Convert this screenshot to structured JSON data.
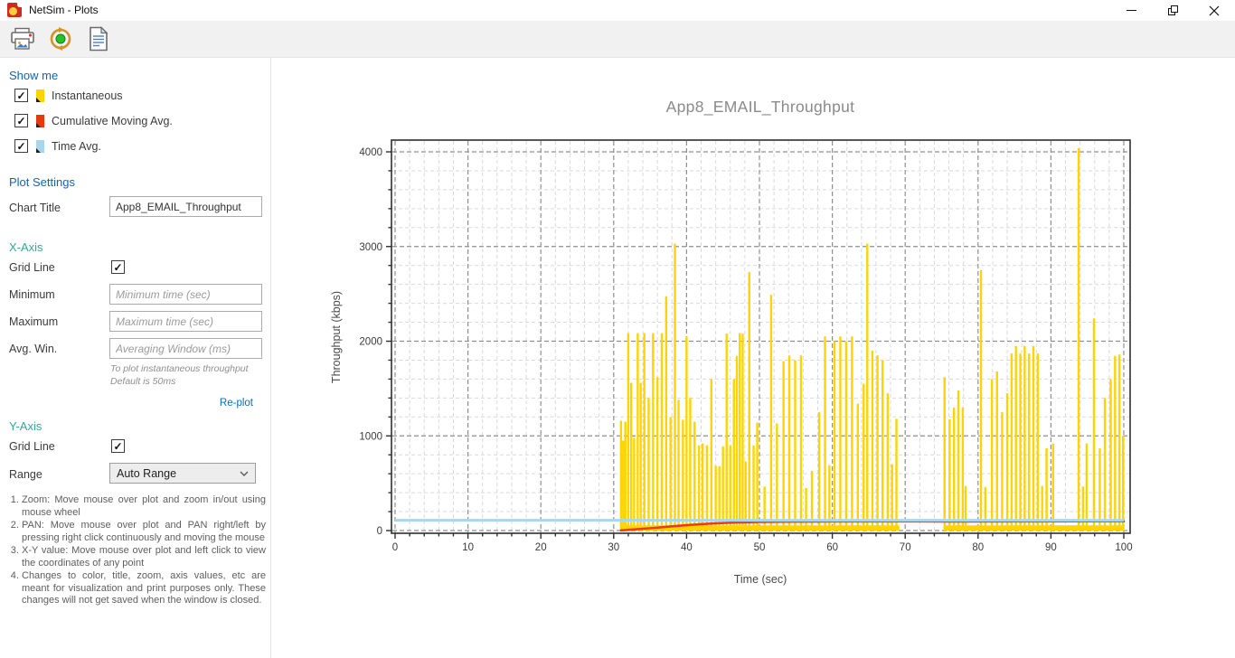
{
  "window": {
    "title": "NetSim - Plots"
  },
  "toolbar": {
    "buttons": [
      {
        "name": "print"
      },
      {
        "name": "capture-animation"
      },
      {
        "name": "report"
      }
    ]
  },
  "sidebar": {
    "show_me": {
      "heading": "Show me",
      "items": [
        {
          "label": "Instantaneous",
          "color": "#FFD400",
          "checked": true
        },
        {
          "label": "Cumulative Moving Avg.",
          "color": "#E8380D",
          "checked": true
        },
        {
          "label": "Time Avg.",
          "color": "#A9D6EF",
          "checked": true
        }
      ]
    },
    "plot_settings": {
      "heading": "Plot Settings",
      "chart_title_label": "Chart Title",
      "chart_title_value": "App8_EMAIL_Throughput"
    },
    "x_axis": {
      "heading": "X-Axis",
      "grid_line_label": "Grid Line",
      "grid_line_checked": true,
      "minimum_label": "Minimum",
      "minimum_placeholder": "Minimum time (sec)",
      "maximum_label": "Maximum",
      "maximum_placeholder": "Maximum time (sec)",
      "avg_win_label": "Avg. Win.",
      "avg_win_placeholder": "Averaging Window (ms)",
      "helper_line1": "To plot instantaneous throughput",
      "helper_line2": "Default is 50ms",
      "replot_label": "Re-plot"
    },
    "y_axis": {
      "heading": "Y-Axis",
      "grid_line_label": "Grid Line",
      "grid_line_checked": true,
      "range_label": "Range",
      "range_value": "Auto Range"
    },
    "instructions": [
      "Zoom: Move mouse over plot and zoom in/out using mouse wheel",
      "PAN: Move mouse over plot and PAN right/left by pressing right click continuously and moving the mouse",
      "X-Y value: Move mouse over plot and left click to view the coordinates of any point",
      "Changes to color, title, zoom, axis values, etc are meant for visualization and print purposes only. These changes will not get saved when the window is closed."
    ]
  },
  "chart_data": {
    "type": "bar",
    "title": "App8_EMAIL_Throughput",
    "xlabel": "Time (sec)",
    "ylabel": "Throughput (kbps)",
    "xlim": [
      0,
      100
    ],
    "ylim": [
      0,
      4000
    ],
    "x_ticks": [
      0,
      10,
      20,
      30,
      40,
      50,
      60,
      70,
      80,
      90,
      100
    ],
    "y_ticks": [
      0,
      1000,
      2000,
      3000,
      4000
    ],
    "x_minor_step": 2,
    "y_minor_step": 200,
    "grid": true,
    "colors": {
      "grid_major": "#8f8f8f",
      "grid_minor": "#dadada",
      "border": "#2e2e2e",
      "tick_text": "#3a3a3a"
    },
    "series": [
      {
        "name": "Instantaneous",
        "type": "bar",
        "color": "#FFD400",
        "baseline_value": 55,
        "baseline_segments": [
          [
            31.0,
            69.2
          ],
          [
            75.3,
            100.0
          ]
        ],
        "points": [
          [
            31.0,
            1160
          ],
          [
            31.3,
            950
          ],
          [
            31.6,
            1150
          ],
          [
            32.0,
            2085
          ],
          [
            32.4,
            1560
          ],
          [
            32.8,
            980
          ],
          [
            33.3,
            2085
          ],
          [
            33.7,
            1560
          ],
          [
            34.2,
            2085
          ],
          [
            34.8,
            1400
          ],
          [
            35.4,
            2085
          ],
          [
            36.0,
            1620
          ],
          [
            36.6,
            2085
          ],
          [
            37.2,
            2475
          ],
          [
            37.8,
            1200
          ],
          [
            38.4,
            3030
          ],
          [
            38.9,
            1380
          ],
          [
            39.5,
            1170
          ],
          [
            40.0,
            2050
          ],
          [
            40.5,
            1400
          ],
          [
            41.1,
            1150
          ],
          [
            41.7,
            900
          ],
          [
            42.2,
            920
          ],
          [
            42.8,
            900
          ],
          [
            43.4,
            1600
          ],
          [
            44.0,
            685
          ],
          [
            44.5,
            680
          ],
          [
            45.0,
            890
          ],
          [
            45.5,
            2080
          ],
          [
            46.0,
            900
          ],
          [
            46.5,
            1600
          ],
          [
            46.9,
            1845
          ],
          [
            47.3,
            2085
          ],
          [
            47.7,
            2080
          ],
          [
            48.1,
            730
          ],
          [
            48.6,
            2730
          ],
          [
            49.2,
            900
          ],
          [
            49.7,
            1140
          ],
          [
            50.7,
            465
          ],
          [
            51.6,
            2490
          ],
          [
            52.4,
            1130
          ],
          [
            53.3,
            1790
          ],
          [
            54.1,
            1850
          ],
          [
            54.9,
            1800
          ],
          [
            55.7,
            1850
          ],
          [
            56.4,
            450
          ],
          [
            57.2,
            630
          ],
          [
            58.2,
            1250
          ],
          [
            59.0,
            2050
          ],
          [
            59.6,
            690
          ],
          [
            60.3,
            2000
          ],
          [
            61.1,
            2050
          ],
          [
            61.9,
            2000
          ],
          [
            62.7,
            2050
          ],
          [
            63.5,
            1340
          ],
          [
            64.3,
            1550
          ],
          [
            64.8,
            3030
          ],
          [
            65.5,
            1900
          ],
          [
            66.2,
            1850
          ],
          [
            66.9,
            1800
          ],
          [
            67.6,
            1450
          ],
          [
            68.2,
            700
          ],
          [
            68.8,
            1180
          ],
          [
            75.4,
            1620
          ],
          [
            76.1,
            1175
          ],
          [
            76.7,
            1300
          ],
          [
            77.3,
            1480
          ],
          [
            77.9,
            1300
          ],
          [
            78.3,
            470
          ],
          [
            80.4,
            2750
          ],
          [
            81.0,
            460
          ],
          [
            81.9,
            1600
          ],
          [
            82.6,
            1680
          ],
          [
            83.3,
            1250
          ],
          [
            84.0,
            1450
          ],
          [
            84.6,
            1870
          ],
          [
            85.2,
            1950
          ],
          [
            85.8,
            1870
          ],
          [
            86.4,
            1950
          ],
          [
            87.0,
            1870
          ],
          [
            87.6,
            1950
          ],
          [
            88.2,
            1870
          ],
          [
            88.8,
            470
          ],
          [
            89.4,
            870
          ],
          [
            90.3,
            920
          ],
          [
            93.8,
            4040
          ],
          [
            94.4,
            465
          ],
          [
            94.9,
            920
          ],
          [
            95.9,
            2240
          ],
          [
            96.7,
            870
          ],
          [
            97.4,
            1400
          ],
          [
            98.2,
            1600
          ],
          [
            98.8,
            1845
          ],
          [
            99.4,
            1860
          ],
          [
            99.9,
            1000
          ]
        ]
      },
      {
        "name": "Cumulative Moving Avg.",
        "type": "line",
        "color": "#EE3B12",
        "points": [
          [
            31,
            2
          ],
          [
            32,
            8
          ],
          [
            33,
            13
          ],
          [
            34,
            19
          ],
          [
            35,
            25
          ],
          [
            36,
            31
          ],
          [
            37,
            38
          ],
          [
            38,
            45
          ],
          [
            39,
            51
          ],
          [
            40,
            57
          ],
          [
            41,
            62
          ],
          [
            42,
            67
          ],
          [
            43,
            72
          ],
          [
            44,
            76
          ],
          [
            45,
            80
          ],
          [
            46,
            83
          ],
          [
            47,
            86
          ],
          [
            48,
            88
          ],
          [
            50,
            91
          ],
          [
            53,
            93
          ],
          [
            56,
            95
          ],
          [
            60,
            96
          ],
          [
            65,
            97
          ],
          [
            70,
            97
          ],
          [
            75,
            96
          ],
          [
            80,
            96
          ],
          [
            85,
            97
          ],
          [
            90,
            97
          ],
          [
            95,
            98
          ],
          [
            100,
            98
          ]
        ]
      },
      {
        "name": "Time Avg.",
        "type": "line",
        "color": "#A9D6EF",
        "points": [
          [
            0,
            108
          ],
          [
            100,
            108
          ]
        ]
      }
    ]
  }
}
